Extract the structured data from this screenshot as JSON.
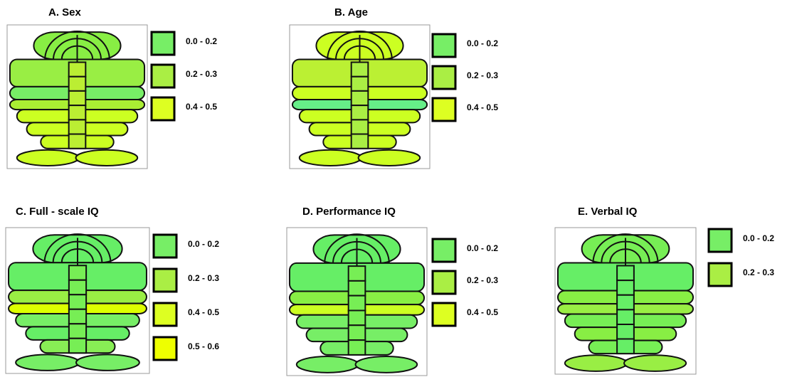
{
  "panels": [
    {
      "title": "A. Sex",
      "legend": [
        {
          "label": "0.0 - 0.2",
          "color": "#77ee66"
        },
        {
          "label": "0.2 - 0.3",
          "color": "#aaee44"
        },
        {
          "label": "0.4 - 0.5",
          "color": "#ddff22"
        }
      ],
      "region_colors": [
        "#88ee44",
        "#99ee44",
        "#77ee66",
        "#aaee33",
        "#ccff22",
        "#ccff22",
        "#ccff22",
        "#bbee33",
        "#ccff22"
      ]
    },
    {
      "title": "B. Age",
      "legend": [
        {
          "label": "0.0 - 0.2",
          "color": "#77ee66"
        },
        {
          "label": "0.2 - 0.3",
          "color": "#aaee44"
        },
        {
          "label": "0.4 - 0.5",
          "color": "#ddff22"
        }
      ],
      "region_colors": [
        "#ccff22",
        "#bbf033",
        "#ccff22",
        "#66ee88",
        "#ccff22",
        "#ccff22",
        "#ccff22",
        "#aaee44",
        "#ccff22"
      ]
    },
    {
      "title": "C. Full - scale IQ",
      "legend": [
        {
          "label": "0.0 - 0.2",
          "color": "#77ee66"
        },
        {
          "label": "0.2 - 0.3",
          "color": "#aaee44"
        },
        {
          "label": "0.4 - 0.5",
          "color": "#ddff22"
        },
        {
          "label": "0.5 - 0.6",
          "color": "#eeff00"
        }
      ],
      "region_colors": [
        "#66ee66",
        "#66ee66",
        "#99ee44",
        "#ddff00",
        "#77ee66",
        "#66ee66",
        "#88ee55",
        "#77ee55",
        "#77ee66"
      ]
    },
    {
      "title": "D. Performance IQ",
      "legend": [
        {
          "label": "0.0 - 0.2",
          "color": "#77ee66"
        },
        {
          "label": "0.2 - 0.3",
          "color": "#aaee44"
        },
        {
          "label": "0.4 - 0.5",
          "color": "#ddff22"
        }
      ],
      "region_colors": [
        "#66ee66",
        "#66ee66",
        "#88ee44",
        "#ccff22",
        "#77ee66",
        "#77ee66",
        "#77ee66",
        "#77ee55",
        "#77ee66"
      ]
    },
    {
      "title": "E. Verbal IQ",
      "legend": [
        {
          "label": "0.0 - 0.2",
          "color": "#77ee66"
        },
        {
          "label": "0.2 - 0.3",
          "color": "#aaee44"
        }
      ],
      "region_colors": [
        "#77ee55",
        "#66ee66",
        "#88ee44",
        "#99ee44",
        "#77ee55",
        "#88ee44",
        "#77ee55",
        "#66ee66",
        "#99ee44"
      ]
    }
  ]
}
